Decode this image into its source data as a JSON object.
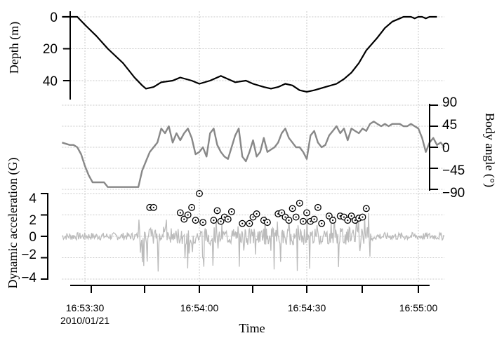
{
  "chart_data": {
    "type": "line",
    "x_axis": {
      "label": "Time",
      "date_label": "2010/01/21",
      "ticks": [
        "16:53:30",
        "16:54:00",
        "16:54:30",
        "16:55:00"
      ],
      "tick_seconds": [
        30,
        60,
        90,
        120
      ],
      "range_seconds": [
        24,
        127
      ]
    },
    "panels": [
      {
        "name": "depth",
        "ylabel": "Depth (m)",
        "yticks": [
          "0",
          "20",
          "40"
        ],
        "ytick_values": [
          0,
          20,
          40
        ],
        "ylim": [
          0,
          50
        ],
        "inverted": true,
        "color": "#000000",
        "series": [
          {
            "x": [
              24,
              28,
              30,
              33,
              36,
              40,
              43,
              45,
              46,
              48,
              50,
              53,
              55,
              58,
              60,
              63,
              66,
              68,
              70,
              73,
              75,
              78,
              80,
              82,
              84,
              86,
              88,
              90,
              92,
              95,
              98,
              100,
              102,
              104,
              106,
              109,
              111,
              113,
              115,
              116,
              117,
              118,
              119,
              120,
              121,
              122,
              123,
              124,
              125
            ],
            "y": [
              0,
              0,
              5,
              12,
              20,
              29,
              38,
              43,
              45,
              44,
              41,
              40,
              38,
              40,
              42,
              40,
              37,
              39,
              41,
              40,
              42,
              44,
              45,
              44,
              42,
              43,
              46,
              47,
              46,
              44,
              42,
              39,
              35,
              29,
              21,
              13,
              7,
              3,
              1,
              0,
              0,
              0,
              1,
              0,
              0,
              1,
              0,
              0,
              0
            ]
          }
        ]
      },
      {
        "name": "body-angle",
        "ylabel": "Body angle (°)",
        "yticks": [
          "90",
          "45",
          "0",
          "−45",
          "−90"
        ],
        "ytick_values": [
          90,
          45,
          0,
          -45,
          -90
        ],
        "ylim": [
          -90,
          90
        ],
        "color": "#888888",
        "series": [
          {
            "x": [
              24,
              26,
              27,
              28,
              29,
              30,
              31,
              32,
              33,
              34,
              35,
              36,
              38,
              40,
              42,
              43,
              44,
              45,
              46,
              47,
              48,
              49,
              50,
              51,
              52,
              53,
              54,
              55,
              56,
              57,
              58,
              59,
              60,
              61,
              62,
              63,
              64,
              65,
              66,
              67,
              68,
              69,
              70,
              71,
              72,
              73,
              74,
              75,
              76,
              77,
              78,
              79,
              80,
              81,
              82,
              83,
              84,
              85,
              86,
              87,
              88,
              89,
              90,
              91,
              92,
              93,
              94,
              95,
              96,
              97,
              98,
              99,
              100,
              101,
              102,
              103,
              104,
              105,
              106,
              107,
              108,
              109,
              110,
              111,
              112,
              113,
              114,
              115,
              116,
              117,
              118,
              119,
              120,
              121,
              122,
              123,
              124,
              125,
              126,
              127
            ],
            "y": [
              10,
              5,
              5,
              0,
              -15,
              -40,
              -60,
              -75,
              -75,
              -75,
              -75,
              -85,
              -85,
              -85,
              -85,
              -85,
              -85,
              -50,
              -30,
              -10,
              0,
              10,
              40,
              30,
              45,
              10,
              30,
              15,
              30,
              40,
              20,
              -15,
              -10,
              0,
              -20,
              30,
              40,
              5,
              -10,
              -20,
              -25,
              0,
              25,
              40,
              -20,
              -30,
              -10,
              15,
              -20,
              -10,
              20,
              -10,
              -5,
              0,
              10,
              30,
              40,
              20,
              10,
              0,
              0,
              -10,
              -25,
              25,
              35,
              10,
              0,
              5,
              25,
              35,
              45,
              30,
              40,
              15,
              40,
              35,
              30,
              40,
              35,
              50,
              55,
              50,
              45,
              50,
              45,
              50,
              50,
              50,
              45,
              45,
              50,
              45,
              40,
              20,
              -10,
              10,
              20,
              5,
              10,
              0
            ]
          }
        ]
      },
      {
        "name": "dynamic-acceleration",
        "ylabel": "Dynamic acceleration (G)",
        "yticks": [
          "4",
          "2",
          "0",
          "−2",
          "−4"
        ],
        "ytick_values": [
          4,
          2,
          0,
          -2,
          -4
        ],
        "ylim": [
          -4.3,
          4.3
        ],
        "color": "#bbbbbb",
        "marker_color": "#000000",
        "markers": {
          "x": [
            47,
            48,
            55,
            56,
            57,
            58,
            59,
            60,
            61,
            64,
            65,
            66,
            67,
            68,
            69,
            72,
            74,
            75,
            76,
            78,
            79,
            82,
            83,
            84,
            85,
            86,
            87,
            88,
            89,
            90,
            91,
            92,
            93,
            94,
            96,
            97,
            99,
            100,
            101,
            102,
            103,
            104,
            105,
            106
          ],
          "y": [
            2.7,
            2.7,
            2.2,
            1.6,
            2.0,
            2.7,
            1.5,
            4.0,
            1.3,
            1.5,
            2.4,
            1.4,
            1.8,
            1.6,
            2.3,
            1.2,
            1.2,
            1.8,
            2.1,
            1.5,
            1.3,
            2.1,
            2.2,
            1.8,
            1.5,
            2.6,
            1.8,
            3.1,
            1.4,
            2.2,
            1.4,
            1.6,
            2.7,
            1.2,
            1.9,
            1.5,
            1.9,
            1.8,
            1.5,
            1.9,
            1.5,
            1.7,
            1.8,
            2.6
          ]
        }
      }
    ]
  }
}
